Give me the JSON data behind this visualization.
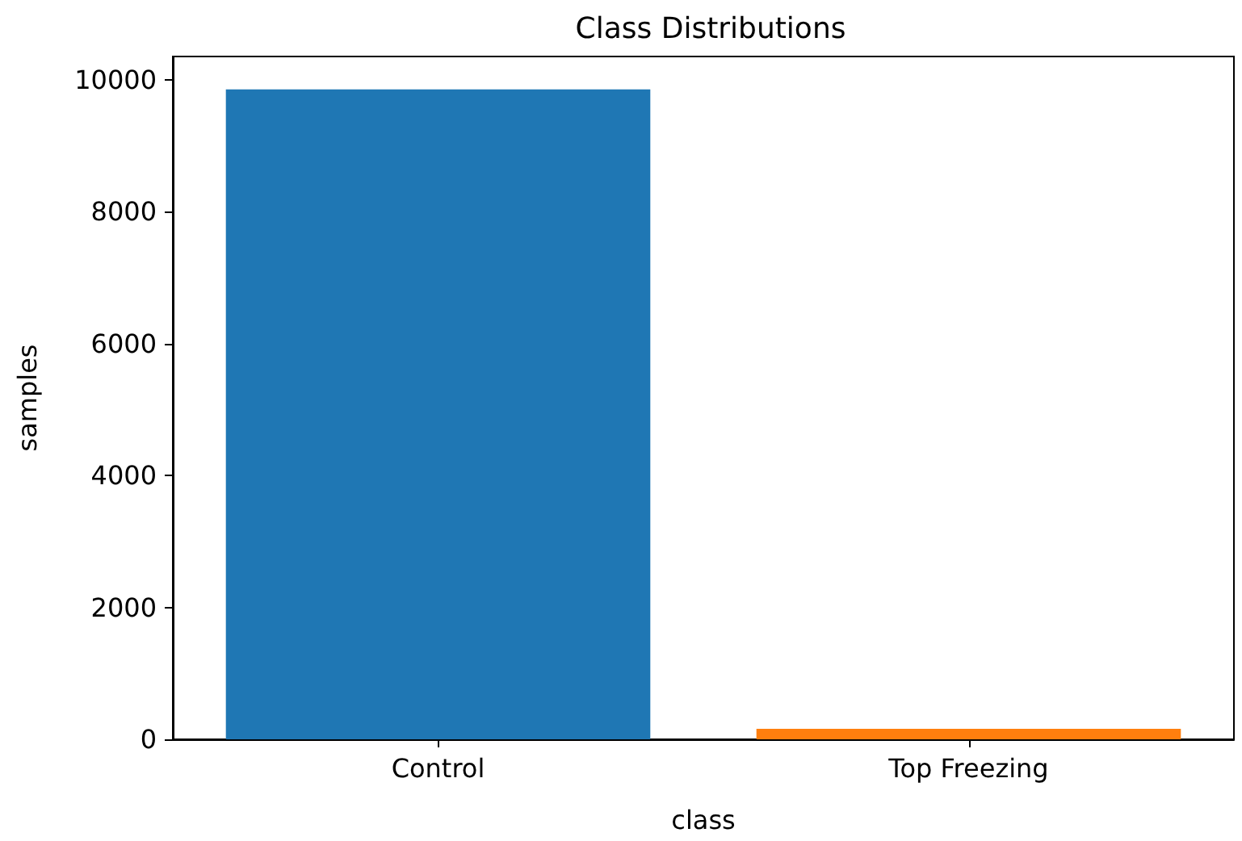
{
  "chart_data": {
    "type": "bar",
    "title": "Class Distributions",
    "xlabel": "class",
    "ylabel": "samples",
    "categories": [
      "Control",
      "Top Freezing"
    ],
    "values": [
      9850,
      160
    ],
    "colors": [
      "#1f77b4",
      "#ff7f0e"
    ],
    "ylim": [
      0,
      10350
    ],
    "yticks": [
      0,
      2000,
      4000,
      6000,
      8000,
      10000
    ],
    "grid": false
  }
}
